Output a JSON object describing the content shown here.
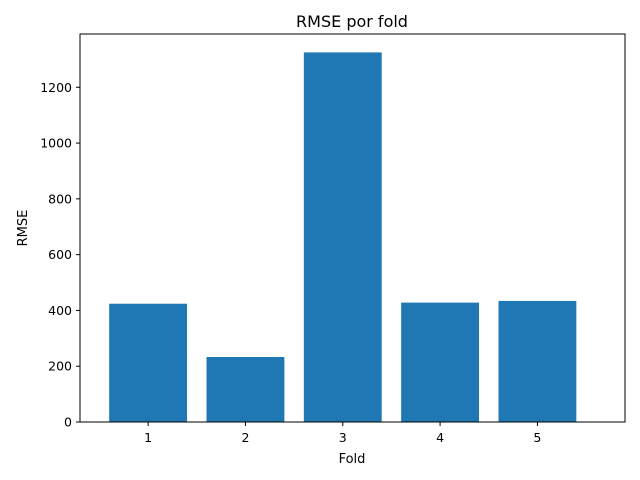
{
  "chart_data": {
    "type": "bar",
    "title": "RMSE por fold",
    "xlabel": "Fold",
    "ylabel": "RMSE",
    "categories": [
      "1",
      "2",
      "3",
      "4",
      "5"
    ],
    "values": [
      424,
      233,
      1325,
      428,
      434
    ],
    "ylim": [
      0,
      1391
    ],
    "yticks": [
      0,
      200,
      400,
      600,
      800,
      1000,
      1200
    ],
    "bar_color": "#1f77b4",
    "grid": false,
    "legend": "none"
  }
}
